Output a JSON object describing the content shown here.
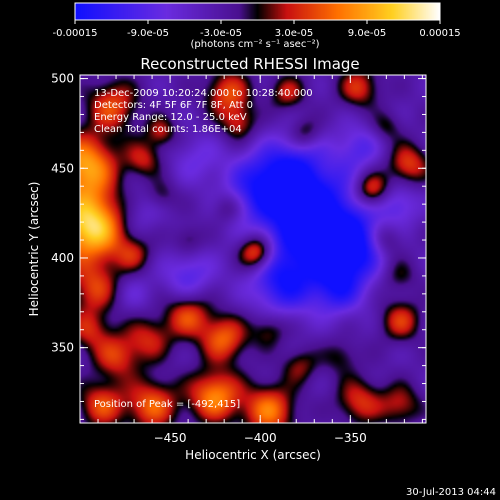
{
  "colorbar": {
    "tick_labels": [
      "-0.00015",
      "-9.0e-05",
      "-3.0e-05",
      "3.0e-05",
      "9.0e-05",
      "0.00015"
    ],
    "tick_values": [
      -0.00015,
      -9e-05,
      -3e-05,
      3e-05,
      9e-05,
      0.00015
    ],
    "range": [
      -0.00015,
      0.00015
    ],
    "units": "(photons cm⁻² s⁻¹ asec⁻²)",
    "colors": [
      "#1010ff",
      "#6a2be0",
      "#4a1090",
      "#000000",
      "#c81010",
      "#ff7000",
      "#ffd020",
      "#ffffff"
    ]
  },
  "chart_data": {
    "type": "heatmap",
    "title": "Reconstructed RHESSI Image",
    "xlabel": "Heliocentric X (arcsec)",
    "ylabel": "Heliocentric Y (arcsec)",
    "xlim": [
      -500,
      -308
    ],
    "ylim": [
      308,
      502
    ],
    "x_ticks": [
      -450,
      -400,
      -350
    ],
    "y_ticks": [
      350,
      400,
      450,
      500
    ],
    "annotations": [
      "13-Dec-2009 10:20:24.000 to 10:28:40.000",
      "Detectors: 4F 5F 6F 7F 8F, Att 0",
      "Energy Range: 12.0 - 25.0 keV",
      "Clean     Total counts: 1.86E+04"
    ],
    "peak_label": "Position of Peak = [-492,415]",
    "peak_position": [
      -492,
      415
    ],
    "sources": [
      {
        "x": -494,
        "y": 418,
        "value": 0.00016,
        "r": 14
      },
      {
        "x": -497,
        "y": 452,
        "value": 0.00012,
        "r": 12
      },
      {
        "x": -492,
        "y": 383,
        "value": 7e-05,
        "r": 10
      },
      {
        "x": -482,
        "y": 485,
        "value": 8e-05,
        "r": 10
      },
      {
        "x": -465,
        "y": 455,
        "value": 6e-05,
        "r": 7
      },
      {
        "x": -455,
        "y": 470,
        "value": 6e-05,
        "r": 6
      },
      {
        "x": -418,
        "y": 492,
        "value": 8e-05,
        "r": 9
      },
      {
        "x": -385,
        "y": 492,
        "value": 6e-05,
        "r": 7
      },
      {
        "x": -345,
        "y": 495,
        "value": 7e-05,
        "r": 8
      },
      {
        "x": -412,
        "y": 475,
        "value": 6e-05,
        "r": 7
      },
      {
        "x": -375,
        "y": 470,
        "value": 5e-05,
        "r": 6
      },
      {
        "x": -330,
        "y": 473,
        "value": 4e-05,
        "r": 6
      },
      {
        "x": -318,
        "y": 452,
        "value": 8e-05,
        "r": 8
      },
      {
        "x": -338,
        "y": 438,
        "value": 0.0001,
        "r": 7
      },
      {
        "x": -402,
        "y": 403,
        "value": 0.00012,
        "r": 7
      },
      {
        "x": -470,
        "y": 402,
        "value": 5e-05,
        "r": 7
      },
      {
        "x": -440,
        "y": 410,
        "value": 4e-05,
        "r": 6
      },
      {
        "x": -455,
        "y": 435,
        "value": 4e-05,
        "r": 6
      },
      {
        "x": -418,
        "y": 428,
        "value": 4e-05,
        "r": 6
      },
      {
        "x": -330,
        "y": 410,
        "value": 5e-05,
        "r": 7
      },
      {
        "x": -323,
        "y": 390,
        "value": 4e-05,
        "r": 7
      },
      {
        "x": -322,
        "y": 365,
        "value": 7e-05,
        "r": 8
      },
      {
        "x": -420,
        "y": 355,
        "value": 9e-05,
        "r": 9
      },
      {
        "x": -440,
        "y": 368,
        "value": 8e-05,
        "r": 9
      },
      {
        "x": -395,
        "y": 360,
        "value": 5e-05,
        "r": 7
      },
      {
        "x": -378,
        "y": 340,
        "value": 5e-05,
        "r": 7
      },
      {
        "x": -462,
        "y": 355,
        "value": 6e-05,
        "r": 9
      },
      {
        "x": -480,
        "y": 345,
        "value": 7e-05,
        "r": 9
      },
      {
        "x": -495,
        "y": 360,
        "value": 6e-05,
        "r": 8
      },
      {
        "x": -425,
        "y": 323,
        "value": 0.00011,
        "r": 10
      },
      {
        "x": -460,
        "y": 318,
        "value": 9e-05,
        "r": 10
      },
      {
        "x": -395,
        "y": 315,
        "value": 0.0001,
        "r": 10
      },
      {
        "x": -488,
        "y": 318,
        "value": 8e-05,
        "r": 9
      },
      {
        "x": -345,
        "y": 320,
        "value": 7e-05,
        "r": 9
      },
      {
        "x": -322,
        "y": 318,
        "value": 6e-05,
        "r": 8
      },
      {
        "x": -355,
        "y": 345,
        "value": 4e-05,
        "r": 7
      },
      {
        "x": -370,
        "y": 418,
        "value": -0.00014,
        "r": 22
      },
      {
        "x": -385,
        "y": 445,
        "value": -0.0001,
        "r": 14
      },
      {
        "x": -350,
        "y": 405,
        "value": -9e-05,
        "r": 12
      },
      {
        "x": -405,
        "y": 440,
        "value": -5e-05,
        "r": 12
      },
      {
        "x": -388,
        "y": 385,
        "value": -8e-05,
        "r": 12
      },
      {
        "x": -357,
        "y": 382,
        "value": -7e-05,
        "r": 10
      },
      {
        "x": -440,
        "y": 390,
        "value": -6e-05,
        "r": 10
      },
      {
        "x": -468,
        "y": 425,
        "value": -4e-05,
        "r": 10
      },
      {
        "x": -435,
        "y": 455,
        "value": -4e-05,
        "r": 10
      },
      {
        "x": -345,
        "y": 462,
        "value": -5e-05,
        "r": 9
      },
      {
        "x": -323,
        "y": 430,
        "value": -5e-05,
        "r": 8
      },
      {
        "x": -470,
        "y": 380,
        "value": -3e-05,
        "r": 8
      }
    ],
    "background": -3.5e-05
  },
  "footer": {
    "timestamp": "30-Jul-2013 04:44"
  }
}
